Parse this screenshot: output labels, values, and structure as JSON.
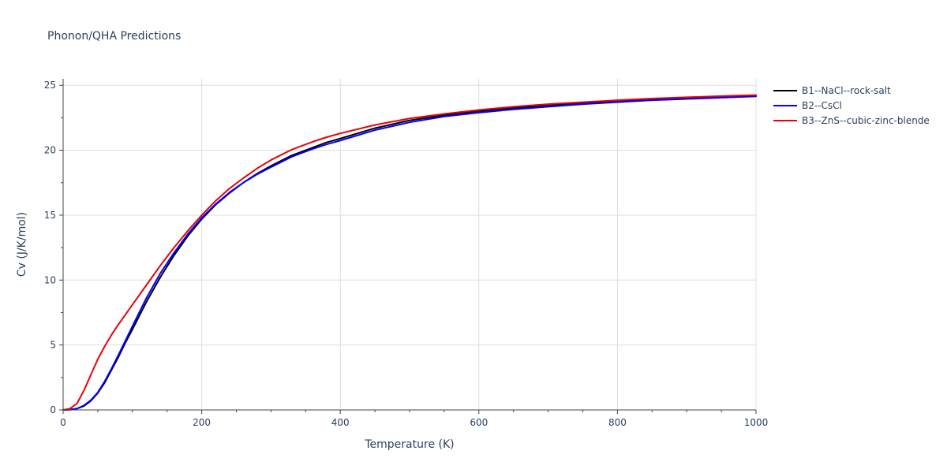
{
  "chart_data": {
    "type": "line",
    "title": "Phonon/QHA Predictions",
    "xlabel": "Temperature (K)",
    "ylabel": "Cv (J/K/mol)",
    "xlim": [
      0,
      1000
    ],
    "ylim": [
      0,
      25.5
    ],
    "xticks": [
      0,
      200,
      400,
      600,
      800,
      1000
    ],
    "yticks": [
      0,
      5,
      10,
      15,
      20,
      25
    ],
    "grid": true,
    "legend_position": "top-right-outside",
    "series": [
      {
        "name": "B1--NaCl--rock-salt",
        "color": "#000000",
        "x": [
          0,
          10,
          20,
          30,
          40,
          50,
          60,
          70,
          80,
          90,
          100,
          120,
          140,
          160,
          180,
          200,
          220,
          240,
          260,
          280,
          300,
          330,
          360,
          380,
          400,
          450,
          500,
          550,
          600,
          650,
          700,
          750,
          800,
          850,
          900,
          950,
          1000
        ],
        "y": [
          0,
          0.02,
          0.1,
          0.3,
          0.7,
          1.3,
          2.1,
          3.1,
          4.1,
          5.2,
          6.2,
          8.3,
          10.2,
          11.9,
          13.4,
          14.7,
          15.8,
          16.7,
          17.5,
          18.2,
          18.8,
          19.6,
          20.2,
          20.6,
          20.9,
          21.7,
          22.3,
          22.7,
          23.0,
          23.25,
          23.45,
          23.6,
          23.75,
          23.88,
          24.0,
          24.1,
          24.2
        ]
      },
      {
        "name": "B2--CsCl",
        "color": "#0000ff",
        "x": [
          0,
          10,
          20,
          30,
          40,
          50,
          60,
          70,
          80,
          90,
          100,
          120,
          140,
          160,
          180,
          200,
          220,
          240,
          260,
          280,
          300,
          330,
          360,
          380,
          400,
          450,
          500,
          550,
          600,
          650,
          700,
          750,
          800,
          850,
          900,
          950,
          1000
        ],
        "y": [
          0,
          0.02,
          0.1,
          0.35,
          0.75,
          1.35,
          2.2,
          3.2,
          4.25,
          5.35,
          6.45,
          8.6,
          10.5,
          12.1,
          13.55,
          14.8,
          15.85,
          16.75,
          17.5,
          18.15,
          18.7,
          19.5,
          20.1,
          20.45,
          20.75,
          21.55,
          22.15,
          22.6,
          22.9,
          23.15,
          23.35,
          23.55,
          23.7,
          23.85,
          23.95,
          24.05,
          24.15
        ]
      },
      {
        "name": "B3--ZnS--cubic-zinc-blende",
        "color": "#e8000b",
        "x": [
          0,
          10,
          20,
          30,
          40,
          50,
          60,
          70,
          80,
          90,
          100,
          120,
          140,
          160,
          180,
          200,
          220,
          240,
          260,
          280,
          300,
          330,
          360,
          380,
          400,
          450,
          500,
          550,
          600,
          650,
          700,
          750,
          800,
          850,
          900,
          950,
          1000
        ],
        "y": [
          0,
          0.1,
          0.5,
          1.5,
          2.7,
          3.9,
          4.9,
          5.8,
          6.6,
          7.35,
          8.1,
          9.6,
          11.1,
          12.5,
          13.8,
          15.0,
          16.1,
          17.05,
          17.85,
          18.6,
          19.25,
          20.05,
          20.65,
          21.0,
          21.3,
          21.95,
          22.45,
          22.8,
          23.1,
          23.35,
          23.55,
          23.7,
          23.85,
          23.98,
          24.08,
          24.17,
          24.25
        ]
      }
    ]
  }
}
